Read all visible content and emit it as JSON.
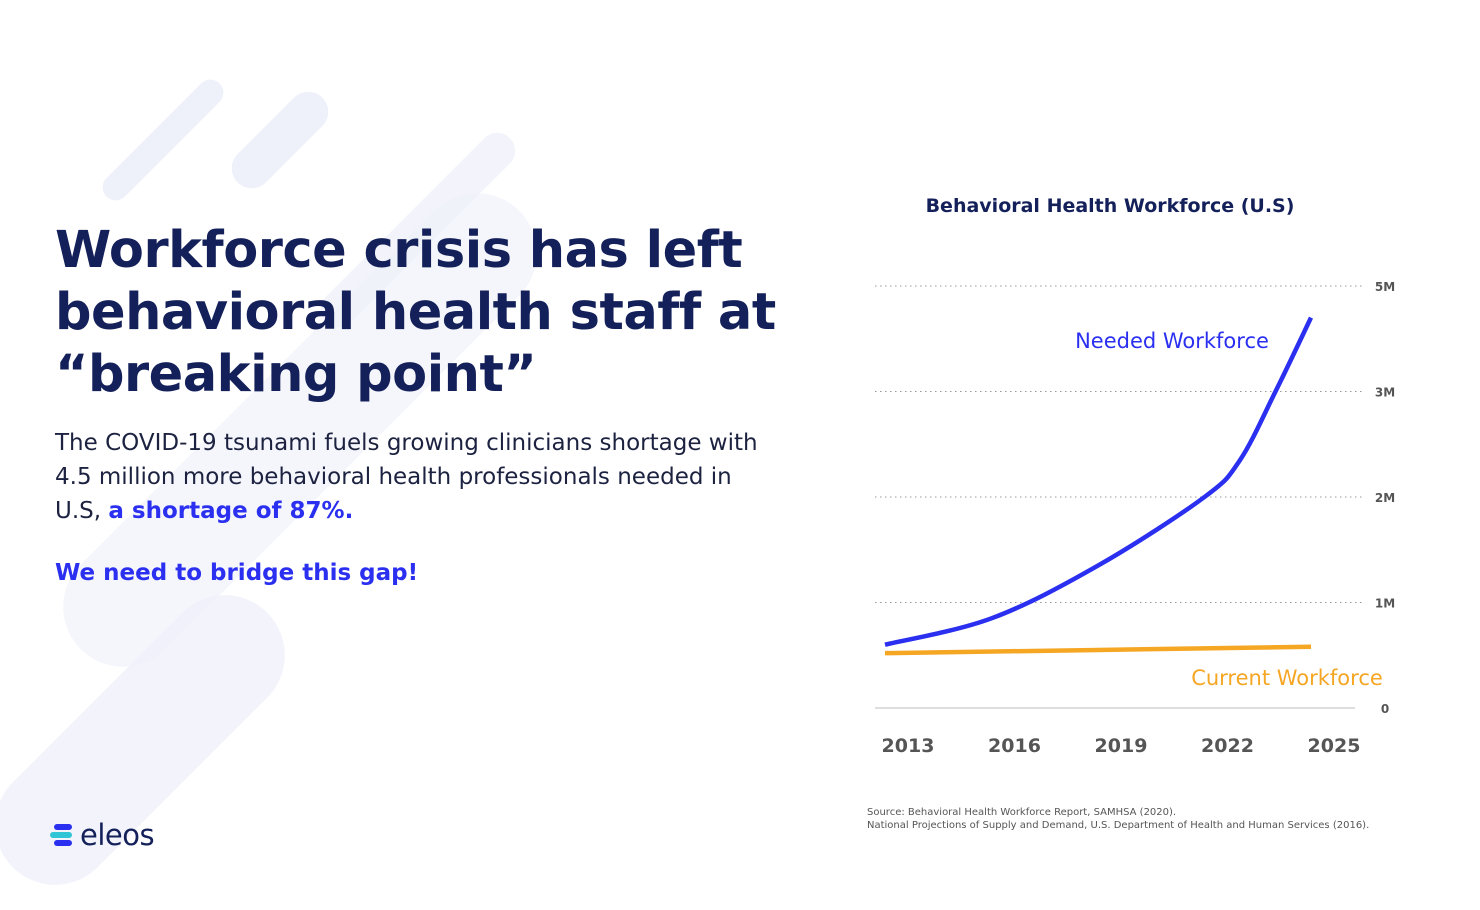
{
  "slide": {
    "title": "Workforce crisis has left behavioral health staff at “breaking point”",
    "body_text": "The COVID-19 tsunami fuels growing clinicians shortage with 4.5 million more behavioral health professionals needed in U.S, ",
    "body_highlight": "a shortage of 87%.",
    "cta": "We need to bridge this gap!",
    "logo": "eleos",
    "source_line1": "Source: Behavioral Health Workforce Report, SAMHSA (2020).",
    "source_line2": "National Projections of Supply and Demand, U.S. Department of Health and Human Services (2016)."
  },
  "colors": {
    "title": "#14205a",
    "accent": "#2a2ff0",
    "needed": "#2a2ff0",
    "current": "#f5a623",
    "logo_teal": "#2fc4d6"
  },
  "chart_data": {
    "type": "line",
    "title": "Behavioral Health Workforce (U.S)",
    "x_ticks": [
      "2013",
      "2016",
      "2019",
      "2022",
      "2025"
    ],
    "y_ticks": [
      {
        "value": 0,
        "label": "0"
      },
      {
        "value": 1,
        "label": "1M"
      },
      {
        "value": 2,
        "label": "2M"
      },
      {
        "value": 3,
        "label": "3M"
      },
      {
        "value": 5,
        "label": "5M"
      }
    ],
    "y_unit": "millions",
    "grid": "dotted horizontal",
    "series": [
      {
        "name": "Needed Workforce",
        "color": "#2a2ff0",
        "x": [
          2013,
          2016,
          2019,
          2022,
          2023,
          2024,
          2025
        ],
        "y": [
          0.6,
          0.85,
          1.35,
          2.0,
          2.35,
          3.0,
          4.4
        ]
      },
      {
        "name": "Current Workforce",
        "color": "#f5a623",
        "x": [
          2013,
          2025
        ],
        "y": [
          0.52,
          0.58
        ]
      }
    ]
  }
}
